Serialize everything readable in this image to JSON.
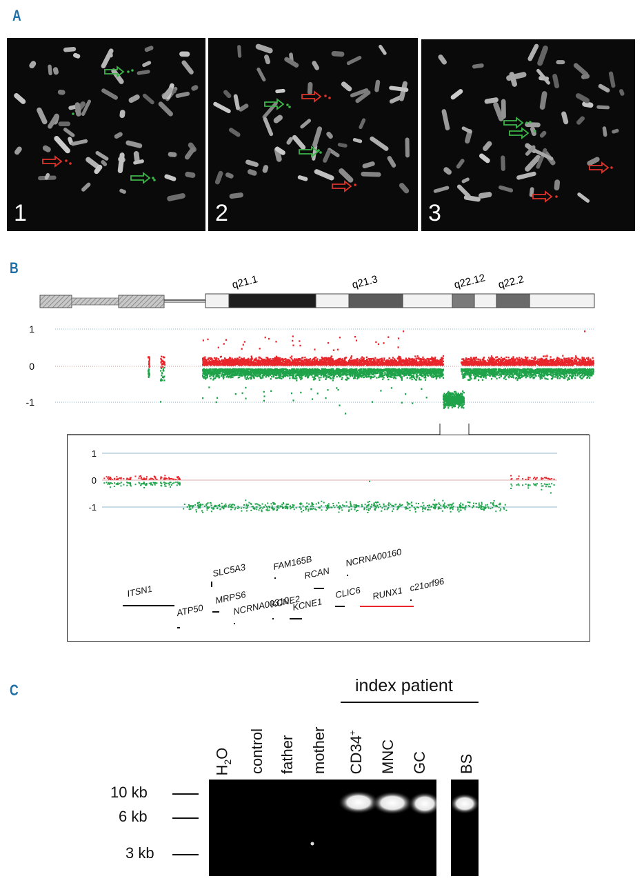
{
  "panels": {
    "a": "A",
    "b": "B",
    "c": "C"
  },
  "panel_a": {
    "images": [
      {
        "number": "1"
      },
      {
        "number": "2"
      },
      {
        "number": "3"
      }
    ],
    "probe_colors": {
      "green": "#3cb54a",
      "red": "#e0342a"
    }
  },
  "panel_b": {
    "bands": [
      "q21.1",
      "q21.3",
      "q22.12",
      "q22.2"
    ],
    "main_plot": {
      "y_ticks": [
        "1",
        "0",
        "-1"
      ]
    },
    "zoom_plot": {
      "y_ticks": [
        "1",
        "0",
        "-1"
      ]
    },
    "genes": [
      "ITSN1",
      "ATP50",
      "SLC5A3",
      "MRPS6",
      "NCRNA00310",
      "FAM165B",
      "KCNE2",
      "KCNE1",
      "RCAN",
      "NCRNA00160",
      "CLIC6",
      "RUNX1",
      "c21orf96"
    ],
    "colors": {
      "gain": "#e8262b",
      "loss": "#1fa34a",
      "deleted_gene": "#e8262b"
    }
  },
  "panel_c": {
    "group_label": "index patient",
    "lanes": [
      "H2O",
      "control",
      "father",
      "mother",
      "CD34+",
      "MNC",
      "GC",
      "BS"
    ],
    "size_markers": [
      "10 kb",
      "6 kb",
      "3 kb"
    ]
  }
}
